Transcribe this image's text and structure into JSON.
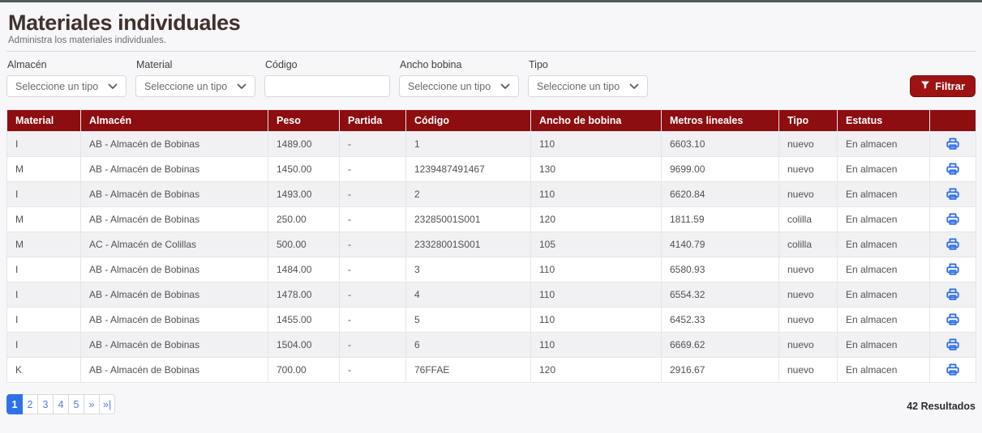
{
  "page": {
    "title": "Materiales individuales",
    "subtitle": "Administra los materiales individuales."
  },
  "filters": {
    "almacen": {
      "label": "Almacén",
      "value": "Seleccione un tipo"
    },
    "material": {
      "label": "Material",
      "value": "Seleccione un tipo"
    },
    "codigo": {
      "label": "Código",
      "value": ""
    },
    "ancho_bobina": {
      "label": "Ancho bobina",
      "value": "Seleccione un tipo"
    },
    "tipo": {
      "label": "Tipo",
      "value": "Seleccione un tipo"
    },
    "filter_button_label": "Filtrar"
  },
  "icons": {
    "filter_button": "funnel-icon",
    "select": "chevron-down-icon",
    "row_action": "printer-icon"
  },
  "table": {
    "columns": [
      "Material",
      "Almacén",
      "Peso",
      "Partida",
      "Código",
      "Ancho de bobina",
      "Metros lineales",
      "Tipo",
      "Estatus",
      ""
    ],
    "rows": [
      [
        "I",
        "AB - Almacén de Bobinas",
        "1489.00",
        "-",
        "1",
        "110",
        "6603.10",
        "nuevo",
        "En almacen"
      ],
      [
        "M",
        "AB - Almacén de Bobinas",
        "1450.00",
        "-",
        "1239487491467",
        "130",
        "9699.00",
        "nuevo",
        "En almacen"
      ],
      [
        "I",
        "AB - Almacén de Bobinas",
        "1493.00",
        "-",
        "2",
        "110",
        "6620.84",
        "nuevo",
        "En almacen"
      ],
      [
        "M",
        "AB - Almacén de Bobinas",
        "250.00",
        "-",
        "23285001S001",
        "120",
        "1811.59",
        "colilla",
        "En almacen"
      ],
      [
        "M",
        "AC - Almacén de Colillas",
        "500.00",
        "-",
        "23328001S001",
        "105",
        "4140.79",
        "colilla",
        "En almacen"
      ],
      [
        "I",
        "AB - Almacén de Bobinas",
        "1484.00",
        "-",
        "3",
        "110",
        "6580.93",
        "nuevo",
        "En almacen"
      ],
      [
        "I",
        "AB - Almacén de Bobinas",
        "1478.00",
        "-",
        "4",
        "110",
        "6554.32",
        "nuevo",
        "En almacen"
      ],
      [
        "I",
        "AB - Almacén de Bobinas",
        "1455.00",
        "-",
        "5",
        "110",
        "6452.33",
        "nuevo",
        "En almacen"
      ],
      [
        "I",
        "AB - Almacén de Bobinas",
        "1504.00",
        "-",
        "6",
        "110",
        "6669.62",
        "nuevo",
        "En almacen"
      ],
      [
        "K",
        "AB - Almacén de Bobinas",
        "700.00",
        "-",
        "76FFAE",
        "120",
        "2916.67",
        "nuevo",
        "En almacen"
      ]
    ]
  },
  "pagination": {
    "pages": [
      "1",
      "2",
      "3",
      "4",
      "5",
      "»",
      "»|"
    ],
    "active": "1",
    "results": "42 Resultados"
  },
  "colors": {
    "header_red": "#8c0e10",
    "button_red": "#9d1314",
    "pagination_blue": "#2e72e9",
    "printer_blue": "#2f6ee7",
    "row_stripe": "#f1f1f3"
  }
}
